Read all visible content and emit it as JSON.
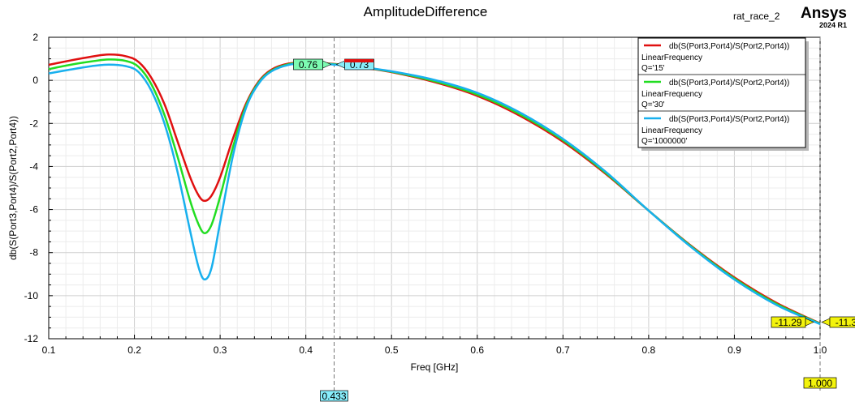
{
  "header": {
    "project": "rat_race_2",
    "brand": "Ansys",
    "version": "2024 R1"
  },
  "chart_data": {
    "type": "line",
    "title": "AmplitudeDifference",
    "xlabel": "Freq [GHz]",
    "ylabel": "db(S(Port3,Port4)/S(Port2,Port4))",
    "xlim": [
      0.1,
      1.0
    ],
    "ylim": [
      -12,
      2
    ],
    "xticks": [
      "0.1",
      "0.2",
      "0.3",
      "0.4",
      "0.5",
      "0.6",
      "0.7",
      "0.8",
      "0.9",
      "1.0"
    ],
    "yticks": [
      "2",
      "0",
      "-2",
      "-4",
      "-6",
      "-8",
      "-10",
      "-12"
    ],
    "grid": true,
    "legend_position": "top-right",
    "series": [
      {
        "name": "db(S(Port3,Port4)/S(Port2,Port4))",
        "sweep": "LinearFrequency",
        "param": "Q='15'",
        "color": "#e01010",
        "points": [
          [
            0.1,
            0.72
          ],
          [
            0.125,
            0.92
          ],
          [
            0.15,
            1.1
          ],
          [
            0.17,
            1.2
          ],
          [
            0.19,
            1.12
          ],
          [
            0.205,
            0.85
          ],
          [
            0.22,
            0.1
          ],
          [
            0.235,
            -1.1
          ],
          [
            0.25,
            -2.8
          ],
          [
            0.265,
            -4.5
          ],
          [
            0.275,
            -5.35
          ],
          [
            0.282,
            -5.6
          ],
          [
            0.29,
            -5.35
          ],
          [
            0.3,
            -4.5
          ],
          [
            0.315,
            -2.7
          ],
          [
            0.33,
            -1.1
          ],
          [
            0.345,
            -0.05
          ],
          [
            0.36,
            0.5
          ],
          [
            0.38,
            0.78
          ],
          [
            0.4,
            0.82
          ],
          [
            0.433,
            0.76
          ],
          [
            0.46,
            0.62
          ],
          [
            0.5,
            0.38
          ],
          [
            0.55,
            -0.08
          ],
          [
            0.6,
            -0.72
          ],
          [
            0.65,
            -1.65
          ],
          [
            0.7,
            -2.85
          ],
          [
            0.75,
            -4.35
          ],
          [
            0.8,
            -6.05
          ],
          [
            0.85,
            -7.7
          ],
          [
            0.9,
            -9.15
          ],
          [
            0.95,
            -10.35
          ],
          [
            1.0,
            -11.29
          ]
        ]
      },
      {
        "name": "db(S(Port3,Port4)/S(Port2,Port4))",
        "sweep": "LinearFrequency",
        "param": "Q='30'",
        "color": "#22dd22",
        "points": [
          [
            0.1,
            0.52
          ],
          [
            0.125,
            0.72
          ],
          [
            0.15,
            0.88
          ],
          [
            0.17,
            0.97
          ],
          [
            0.19,
            0.9
          ],
          [
            0.205,
            0.62
          ],
          [
            0.22,
            -0.2
          ],
          [
            0.235,
            -1.6
          ],
          [
            0.25,
            -3.5
          ],
          [
            0.265,
            -5.6
          ],
          [
            0.275,
            -6.7
          ],
          [
            0.282,
            -7.1
          ],
          [
            0.29,
            -6.7
          ],
          [
            0.3,
            -5.4
          ],
          [
            0.315,
            -3.1
          ],
          [
            0.33,
            -1.2
          ],
          [
            0.345,
            -0.1
          ],
          [
            0.36,
            0.45
          ],
          [
            0.38,
            0.75
          ],
          [
            0.4,
            0.8
          ],
          [
            0.433,
            0.75
          ],
          [
            0.46,
            0.63
          ],
          [
            0.5,
            0.4
          ],
          [
            0.55,
            -0.04
          ],
          [
            0.6,
            -0.66
          ],
          [
            0.65,
            -1.58
          ],
          [
            0.7,
            -2.78
          ],
          [
            0.75,
            -4.3
          ],
          [
            0.8,
            -6.05
          ],
          [
            0.85,
            -7.73
          ],
          [
            0.9,
            -9.2
          ],
          [
            0.95,
            -10.4
          ],
          [
            1.0,
            -11.3
          ]
        ]
      },
      {
        "name": "db(S(Port3,Port4)/S(Port2,Port4))",
        "sweep": "LinearFrequency",
        "param": "Q='1000000'",
        "color": "#18b0ee",
        "points": [
          [
            0.1,
            0.32
          ],
          [
            0.125,
            0.5
          ],
          [
            0.15,
            0.66
          ],
          [
            0.17,
            0.73
          ],
          [
            0.19,
            0.66
          ],
          [
            0.205,
            0.38
          ],
          [
            0.22,
            -0.5
          ],
          [
            0.235,
            -2.0
          ],
          [
            0.25,
            -4.2
          ],
          [
            0.265,
            -7.0
          ],
          [
            0.275,
            -8.7
          ],
          [
            0.282,
            -9.25
          ],
          [
            0.29,
            -8.7
          ],
          [
            0.3,
            -6.6
          ],
          [
            0.315,
            -3.5
          ],
          [
            0.33,
            -1.3
          ],
          [
            0.345,
            -0.15
          ],
          [
            0.36,
            0.42
          ],
          [
            0.38,
            0.72
          ],
          [
            0.4,
            0.78
          ],
          [
            0.433,
            0.73
          ],
          [
            0.46,
            0.64
          ],
          [
            0.5,
            0.42
          ],
          [
            0.55,
            0.02
          ],
          [
            0.6,
            -0.58
          ],
          [
            0.65,
            -1.5
          ],
          [
            0.7,
            -2.72
          ],
          [
            0.75,
            -4.25
          ],
          [
            0.8,
            -6.05
          ],
          [
            0.85,
            -7.76
          ],
          [
            0.9,
            -9.25
          ],
          [
            0.95,
            -10.45
          ],
          [
            1.0,
            -11.32
          ]
        ]
      }
    ],
    "markers": [
      {
        "x": 0.433,
        "x_label": "0.433",
        "values": [
          "0.76",
          "0.73"
        ]
      },
      {
        "x": 1.0,
        "x_label": "1.000",
        "values": [
          "-11.29",
          "-11.3"
        ]
      }
    ]
  }
}
